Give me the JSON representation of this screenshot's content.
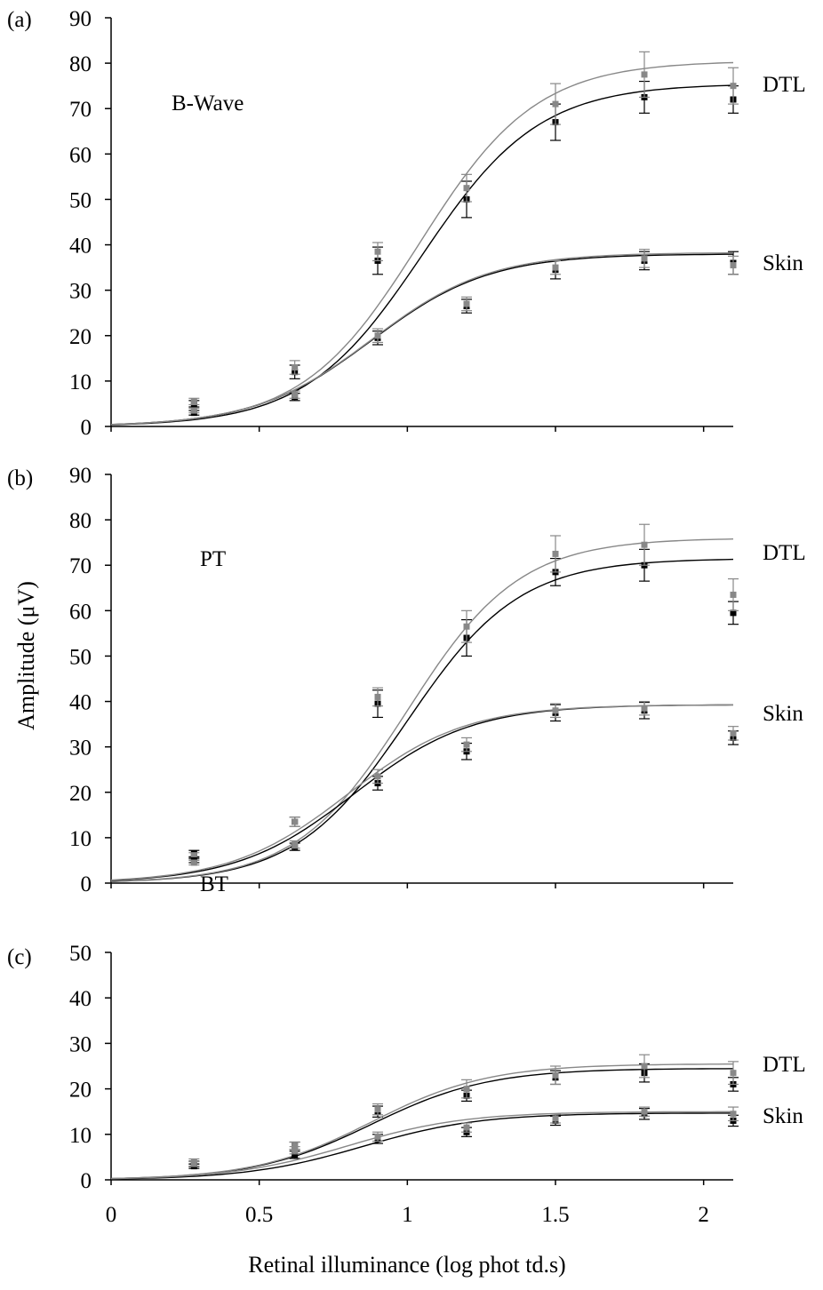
{
  "figure": {
    "ylabel": "Amplitude (μV)",
    "xlabel": "Retinal illuminance (log phot td.s)",
    "x_ticks": [
      "0",
      "0.5",
      "1",
      "1.5",
      "2"
    ],
    "colors": {
      "dark": "#000000",
      "grey": "#888888",
      "axis": "#000000"
    }
  },
  "chart_data": [
    {
      "type": "line",
      "panel_label": "(a)",
      "annotation": "B-Wave",
      "group_labels": [
        "DTL",
        "Skin"
      ],
      "xlim": [
        0,
        2.1
      ],
      "ylim": [
        0,
        90
      ],
      "y_ticks": [
        "0",
        "10",
        "20",
        "30",
        "40",
        "50",
        "60",
        "70",
        "80",
        "90"
      ],
      "x": [
        0.28,
        0.62,
        0.9,
        1.2,
        1.5,
        1.8,
        2.1
      ],
      "series": [
        {
          "group": "DTL",
          "tone": "dark",
          "values": [
            5,
            12,
            36.5,
            50,
            67,
            72.5,
            72
          ],
          "errors": [
            0.7,
            1.5,
            3,
            4,
            4,
            3.5,
            3
          ],
          "fit_max": 75.5,
          "fit_mid": 1.05,
          "fit_n": 2.2
        },
        {
          "group": "DTL",
          "tone": "grey",
          "values": [
            5.5,
            13,
            38.5,
            52.5,
            71,
            77.5,
            75
          ],
          "errors": [
            0.7,
            1.5,
            2,
            3,
            4.5,
            5,
            4
          ],
          "fit_max": 80.5,
          "fit_mid": 1.04,
          "fit_n": 2.2
        },
        {
          "group": "Skin",
          "tone": "dark",
          "values": [
            3,
            6.5,
            19.5,
            26.5,
            34.5,
            36.5,
            36
          ],
          "errors": [
            0.5,
            0.8,
            1.5,
            1.5,
            2,
            2,
            2.5
          ],
          "fit_max": 38,
          "fit_mid": 0.88,
          "fit_n": 2.2
        },
        {
          "group": "Skin",
          "tone": "grey",
          "values": [
            3.5,
            7,
            20,
            27,
            35,
            37,
            35.5
          ],
          "errors": [
            0.5,
            0.8,
            1.5,
            1.5,
            1.5,
            2,
            2
          ],
          "fit_max": 38.3,
          "fit_mid": 0.88,
          "fit_n": 2.2
        }
      ]
    },
    {
      "type": "line",
      "panel_label": "(b)",
      "annotation": "PT",
      "group_labels": [
        "DTL",
        "Skin"
      ],
      "xlim": [
        0,
        2.1
      ],
      "ylim": [
        0,
        90
      ],
      "y_ticks": [
        "0",
        "10",
        "20",
        "30",
        "40",
        "50",
        "60",
        "70",
        "80",
        "90"
      ],
      "x": [
        0.28,
        0.62,
        0.9,
        1.2,
        1.5,
        1.8,
        2.1
      ],
      "series": [
        {
          "group": "DTL",
          "tone": "dark",
          "values": [
            6.5,
            13.5,
            39.5,
            54,
            68.5,
            70,
            59.5
          ],
          "errors": [
            0.7,
            1,
            3,
            4,
            3,
            3.5,
            2.5
          ],
          "fit_max": 71.5,
          "fit_mid": 1.0,
          "fit_n": 2.3
        },
        {
          "group": "DTL",
          "tone": "grey",
          "values": [
            6,
            13.5,
            41,
            56.5,
            72.5,
            74.5,
            63.5
          ],
          "errors": [
            0.7,
            1,
            2,
            3.5,
            4,
            4.5,
            3.5
          ],
          "fit_max": 76,
          "fit_mid": 1.0,
          "fit_n": 2.3
        },
        {
          "group": "Skin",
          "tone": "dark",
          "values": [
            5,
            8,
            22,
            29,
            37.5,
            38,
            32
          ],
          "errors": [
            0.5,
            0.8,
            1.5,
            1.8,
            1.8,
            1.8,
            1.5
          ],
          "fit_max": 39.3,
          "fit_mid": 0.82,
          "fit_n": 2.2
        },
        {
          "group": "Skin",
          "tone": "grey",
          "values": [
            4.5,
            8.5,
            23.5,
            30.5,
            38,
            38.5,
            33
          ],
          "errors": [
            0.5,
            0.8,
            1.5,
            1.5,
            1.5,
            1.5,
            1.5
          ],
          "fit_max": 39.3,
          "fit_mid": 0.8,
          "fit_n": 2.2
        }
      ]
    },
    {
      "type": "line",
      "panel_label": "(c)",
      "annotation": "BT",
      "group_labels": [
        "DTL",
        "Skin"
      ],
      "xlim": [
        0,
        2.1
      ],
      "ylim": [
        0,
        50
      ],
      "y_ticks": [
        "0",
        "10",
        "20",
        "30",
        "40",
        "50"
      ],
      "x": [
        0.28,
        0.62,
        0.9,
        1.2,
        1.5,
        1.8,
        2.1
      ],
      "series": [
        {
          "group": "DTL",
          "tone": "dark",
          "values": [
            3.5,
            7.5,
            15,
            18.5,
            22.5,
            23.5,
            21
          ],
          "errors": [
            0.6,
            0.8,
            1.2,
            1.2,
            1.5,
            2,
            1.5
          ],
          "fit_max": 24.5,
          "fit_mid": 0.88,
          "fit_n": 2.2
        },
        {
          "group": "DTL",
          "tone": "grey",
          "values": [
            4,
            7.5,
            15.5,
            20,
            23,
            25,
            23.5
          ],
          "errors": [
            0.6,
            0.8,
            1.2,
            2,
            2,
            2.5,
            2.5
          ],
          "fit_max": 25.5,
          "fit_mid": 0.88,
          "fit_n": 2.2
        },
        {
          "group": "Skin",
          "tone": "dark",
          "values": [
            3,
            5.5,
            9,
            10.5,
            13,
            14.5,
            13
          ],
          "errors": [
            0.5,
            0.8,
            1,
            1,
            1,
            1.2,
            1.2
          ],
          "fit_max": 14.7,
          "fit_mid": 0.85,
          "fit_n": 2.2
        },
        {
          "group": "Skin",
          "tone": "grey",
          "values": [
            3.5,
            6.5,
            9.5,
            11.5,
            13.5,
            15,
            14.5
          ],
          "errors": [
            0.5,
            0.8,
            1,
            1,
            1,
            1,
            1.5
          ],
          "fit_max": 15,
          "fit_mid": 0.8,
          "fit_n": 2.2
        }
      ]
    }
  ]
}
